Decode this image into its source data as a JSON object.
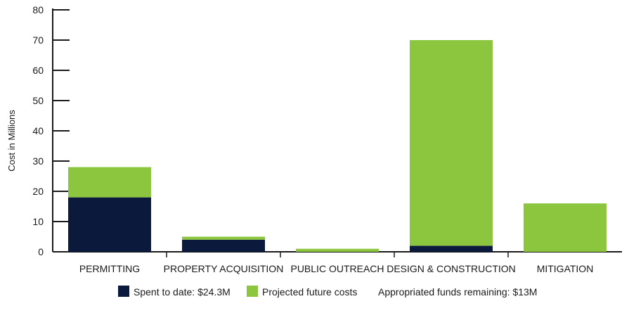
{
  "chart_data": {
    "type": "bar",
    "stacked": true,
    "categories": [
      "PERMITTING",
      "PROPERTY ACQUISITION",
      "PUBLIC OUTREACH",
      "DESIGN & CONSTRUCTION",
      "MITIGATION"
    ],
    "series": [
      {
        "name": "Spent to date: $24.3M",
        "color": "#0b1a3c",
        "values": [
          18,
          4,
          0,
          2,
          0
        ]
      },
      {
        "name": "Projected future costs",
        "color": "#8cc63f",
        "values": [
          10,
          1,
          1,
          68,
          16
        ]
      }
    ],
    "ylabel": "Cost in Millions",
    "xlabel": "",
    "ylim": [
      0,
      80
    ],
    "yticks": [
      0,
      10,
      20,
      30,
      40,
      50,
      60,
      70,
      80
    ],
    "grid": false,
    "legend_position": "bottom",
    "legend_note": "Appropriated funds remaining: $13M"
  }
}
